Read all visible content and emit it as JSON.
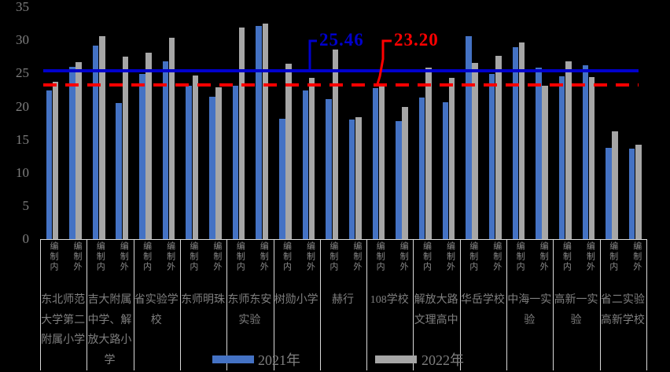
{
  "chart_data": {
    "type": "bar",
    "title": "",
    "y_axis": {
      "min": 0,
      "max": 35,
      "ticks": [
        0,
        5,
        10,
        15,
        20,
        25,
        30,
        35
      ]
    },
    "legend": [
      {
        "label": "2021年",
        "color": "#4472C4"
      },
      {
        "label": "2022年",
        "color": "#A6A6A6"
      }
    ],
    "legend_position": "bottom",
    "grid": "off",
    "reference_lines": [
      {
        "label": "25.46",
        "value": 25.46,
        "color": "#0000CC",
        "style": "solid"
      },
      {
        "label": "23.20",
        "value": 23.2,
        "color": "#FF0000",
        "style": "dashed"
      }
    ],
    "sub_labels": [
      "编制内",
      "编制外"
    ],
    "series_names": [
      "2021年",
      "2022年"
    ],
    "groups": [
      {
        "school": "东北师范大学第二附属小学",
        "bars": [
          {
            "sub": "编制内",
            "y2021": 22.4,
            "y2022": 23.8
          },
          {
            "sub": "编制外",
            "y2021": 26.0,
            "y2022": 26.7
          }
        ]
      },
      {
        "school": "吉大附属中学、解放大路小学",
        "bars": [
          {
            "sub": "编制内",
            "y2021": 29.2,
            "y2022": 30.7
          },
          {
            "sub": "编制外",
            "y2021": 20.6,
            "y2022": 27.6
          }
        ]
      },
      {
        "school": "省实验学校",
        "bars": [
          {
            "sub": "编制内",
            "y2021": 24.9,
            "y2022": 28.1
          },
          {
            "sub": "编制外",
            "y2021": 26.8,
            "y2022": 30.4
          }
        ]
      },
      {
        "school": "东师明珠",
        "bars": [
          {
            "sub": "编制内",
            "y2021": 23.2,
            "y2022": 24.7
          },
          {
            "sub": "编制外",
            "y2021": 21.5,
            "y2022": 22.9
          }
        ]
      },
      {
        "school": "东师东安实验",
        "bars": [
          {
            "sub": "编制内",
            "y2021": 23.1,
            "y2022": 31.9
          },
          {
            "sub": "编制外",
            "y2021": 32.2,
            "y2022": 32.5
          }
        ]
      },
      {
        "school": "树勋小学",
        "bars": [
          {
            "sub": "编制内",
            "y2021": 18.2,
            "y2022": 26.5
          },
          {
            "sub": "编制外",
            "y2021": 22.5,
            "y2022": 24.4
          }
        ]
      },
      {
        "school": "赫行",
        "bars": [
          {
            "sub": "编制内",
            "y2021": 21.1,
            "y2022": 28.6
          },
          {
            "sub": "编制外",
            "y2021": 18.0,
            "y2022": 18.4
          }
        ]
      },
      {
        "school": "108学校",
        "bars": [
          {
            "sub": "编制内",
            "y2021": 22.8,
            "y2022": 23.1
          },
          {
            "sub": "编制外",
            "y2021": 17.8,
            "y2022": 19.9
          }
        ]
      },
      {
        "school": "解放大路文理高中",
        "bars": [
          {
            "sub": "编制内",
            "y2021": 21.4,
            "y2022": 25.9
          },
          {
            "sub": "编制外",
            "y2021": 20.7,
            "y2022": 24.3
          }
        ]
      },
      {
        "school": "华岳学校",
        "bars": [
          {
            "sub": "编制内",
            "y2021": 30.6,
            "y2022": 26.6
          },
          {
            "sub": "编制外",
            "y2021": 24.9,
            "y2022": 27.7
          }
        ]
      },
      {
        "school": "中海一实验",
        "bars": [
          {
            "sub": "编制内",
            "y2021": 29.0,
            "y2022": 29.7
          },
          {
            "sub": "编制外",
            "y2021": 25.9,
            "y2022": 23.1
          }
        ]
      },
      {
        "school": "高新一实验",
        "bars": [
          {
            "sub": "编制内",
            "y2021": 24.6,
            "y2022": 26.9
          },
          {
            "sub": "编制外",
            "y2021": 26.2,
            "y2022": 24.5
          }
        ]
      },
      {
        "school": "省二实验高新学校",
        "bars": [
          {
            "sub": "编制内",
            "y2021": 13.8,
            "y2022": 16.3
          },
          {
            "sub": "编制外",
            "y2021": 13.6,
            "y2022": 14.2
          }
        ]
      }
    ]
  }
}
